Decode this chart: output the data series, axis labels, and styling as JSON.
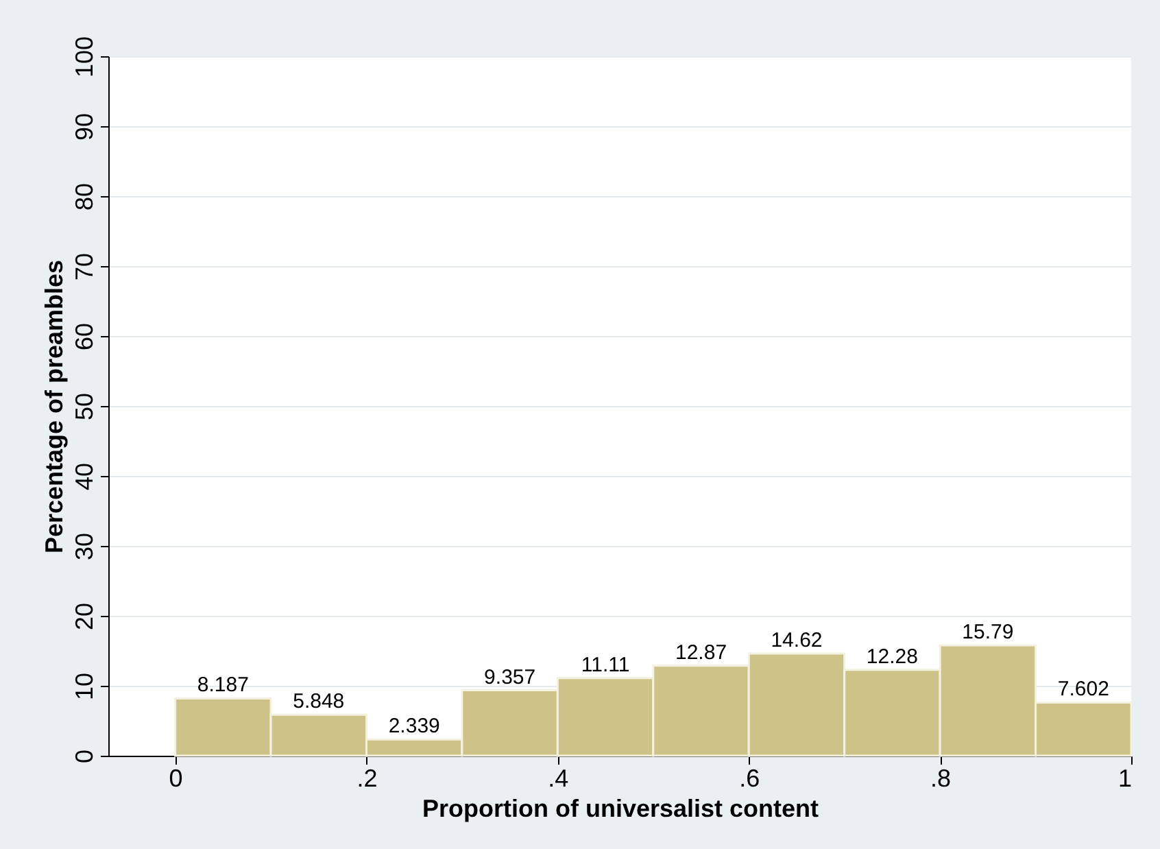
{
  "chart_data": {
    "type": "histogram",
    "xlabel": "Proportion of universalist content",
    "ylabel": "Percentage of preambles",
    "bins": [
      0,
      0.1,
      0.2,
      0.3,
      0.4,
      0.5,
      0.6,
      0.7,
      0.8,
      0.9,
      1
    ],
    "values": [
      8.187,
      5.848,
      2.339,
      9.357,
      11.11,
      12.87,
      14.62,
      12.28,
      15.79,
      7.602
    ],
    "color": "#cdc388",
    "xlim": [
      -0.07,
      1.0
    ],
    "xticks": [
      0,
      {
        "value": 0.2,
        "label": ".2"
      },
      {
        "value": 0.4,
        "label": ".4"
      },
      {
        "value": 0.6,
        "label": ".6"
      },
      {
        "value": 0.8,
        "label": ".8"
      },
      1
    ],
    "ylim": [
      0,
      100
    ],
    "yticks": [
      0,
      10,
      20,
      30,
      40,
      50,
      60,
      70,
      80,
      90,
      100
    ],
    "grid": "y",
    "data_labels": true
  }
}
